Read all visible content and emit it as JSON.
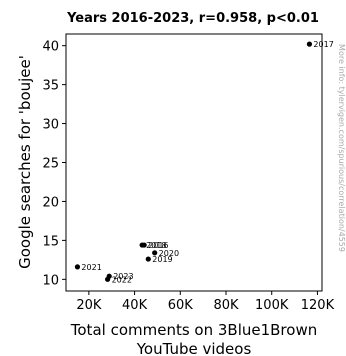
{
  "chart_data": {
    "type": "scatter",
    "title": "Years 2016-2023, r=0.958, p<0.01",
    "xlabel": [
      "Total comments on 3Blue1Brown",
      "YouTube videos"
    ],
    "ylabel": "Google searches for 'boujee'",
    "xlim": [
      10000,
      122000
    ],
    "ylim": [
      8.5,
      41.5
    ],
    "xticks": [
      20000,
      40000,
      60000,
      80000,
      100000,
      120000
    ],
    "xtick_labels": [
      "20K",
      "40K",
      "60K",
      "80K",
      "100K",
      "120K"
    ],
    "yticks": [
      10,
      15,
      20,
      25,
      30,
      35,
      40
    ],
    "ytick_labels": [
      "10",
      "15",
      "20",
      "25",
      "30",
      "35",
      "40"
    ],
    "points": [
      {
        "label": "2016",
        "x": 44200,
        "y": 14.4
      },
      {
        "label": "2017",
        "x": 116500,
        "y": 40.2
      },
      {
        "label": "2018",
        "x": 43300,
        "y": 14.4
      },
      {
        "label": "2019",
        "x": 46000,
        "y": 12.6
      },
      {
        "label": "2020",
        "x": 48800,
        "y": 13.4
      },
      {
        "label": "2021",
        "x": 15000,
        "y": 11.6
      },
      {
        "label": "2022",
        "x": 28200,
        "y": 10.0
      },
      {
        "label": "2023",
        "x": 28900,
        "y": 10.4
      }
    ],
    "grid": false,
    "legend": "none",
    "watermark": "More info: tylervigen.com/spurious/correlation/4559",
    "point_color": "#000000"
  }
}
